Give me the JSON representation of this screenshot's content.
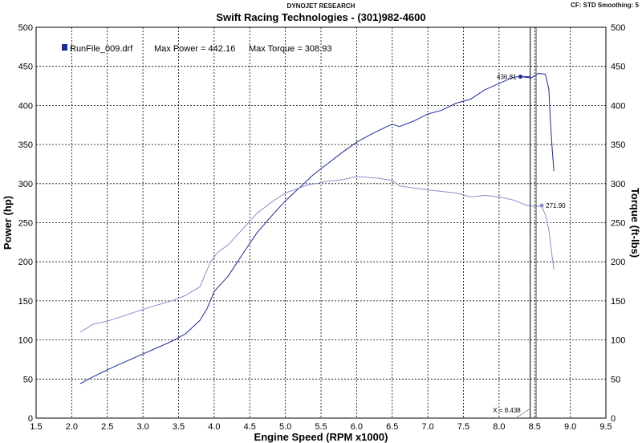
{
  "header": {
    "top_center": "DYNOJET RESEARCH",
    "top_right": "CF: STD  Smoothing: 5",
    "title": "Swift Racing Technologies - (301)982-4600"
  },
  "legend": {
    "run_file": "RunFile_009.drf",
    "max_power_text": "Max Power = 442.16",
    "max_torque_text": "Max Torque = 308.93",
    "marker_color": "#1a2a9a"
  },
  "chart_data": {
    "type": "line",
    "title": "Swift Racing Technologies - (301)982-4600",
    "xlabel": "Engine Speed (RPM x1000)",
    "ylabel_left": "Power (hp)",
    "ylabel_right": "Torque (ft-lbs)",
    "xlim": [
      1.5,
      9.5
    ],
    "ylim": [
      0,
      500
    ],
    "x_ticks": [
      "1.5",
      "2.0",
      "2.5",
      "3.0",
      "3.5",
      "4.0",
      "4.5",
      "5.0",
      "5.5",
      "6.0",
      "6.5",
      "7.0",
      "7.5",
      "8.0",
      "8.5",
      "9.0",
      "9.5"
    ],
    "y_ticks": [
      "0",
      "50",
      "100",
      "150",
      "200",
      "250",
      "300",
      "350",
      "400",
      "450",
      "500"
    ],
    "grid": true,
    "legend_position": "top-left",
    "series": [
      {
        "key": "power",
        "color": "#1a2a9a",
        "x": [
          2.12,
          2.3,
          2.6,
          3.0,
          3.4,
          3.6,
          3.8,
          3.9,
          4.0,
          4.2,
          4.4,
          4.6,
          4.8,
          5.0,
          5.2,
          5.4,
          5.6,
          5.8,
          6.0,
          6.2,
          6.4,
          6.5,
          6.6,
          6.8,
          7.0,
          7.2,
          7.4,
          7.6,
          7.8,
          8.0,
          8.2,
          8.3,
          8.45,
          8.55,
          8.65,
          8.7,
          8.72,
          8.75,
          8.77
        ],
        "y": [
          44,
          53,
          66,
          82,
          98,
          108,
          125,
          140,
          162,
          182,
          210,
          237,
          258,
          278,
          295,
          312,
          326,
          340,
          353,
          363,
          372,
          376,
          373,
          380,
          389,
          394,
          403,
          408,
          420,
          428,
          436,
          437,
          435,
          441,
          440,
          420,
          380,
          340,
          316
        ]
      },
      {
        "key": "torque",
        "color": "#8a90cc",
        "x": [
          2.12,
          2.3,
          2.5,
          2.8,
          3.1,
          3.4,
          3.6,
          3.8,
          3.95,
          4.05,
          4.2,
          4.4,
          4.6,
          4.8,
          5.0,
          5.3,
          5.6,
          5.8,
          6.0,
          6.3,
          6.5,
          6.6,
          7.0,
          7.4,
          7.6,
          7.8,
          8.0,
          8.2,
          8.4,
          8.5,
          8.6,
          8.65,
          8.7,
          8.74,
          8.77
        ],
        "y": [
          110,
          120,
          124,
          133,
          142,
          150,
          157,
          168,
          200,
          212,
          222,
          242,
          262,
          276,
          288,
          298,
          303,
          305,
          309,
          307,
          304,
          297,
          292,
          288,
          283,
          285,
          283,
          279,
          272,
          271,
          271,
          260,
          240,
          210,
          190
        ]
      }
    ],
    "annotations": {
      "power_label": "436.81",
      "torque_label": "271.90",
      "cursor_label": "X = 8.438"
    }
  }
}
